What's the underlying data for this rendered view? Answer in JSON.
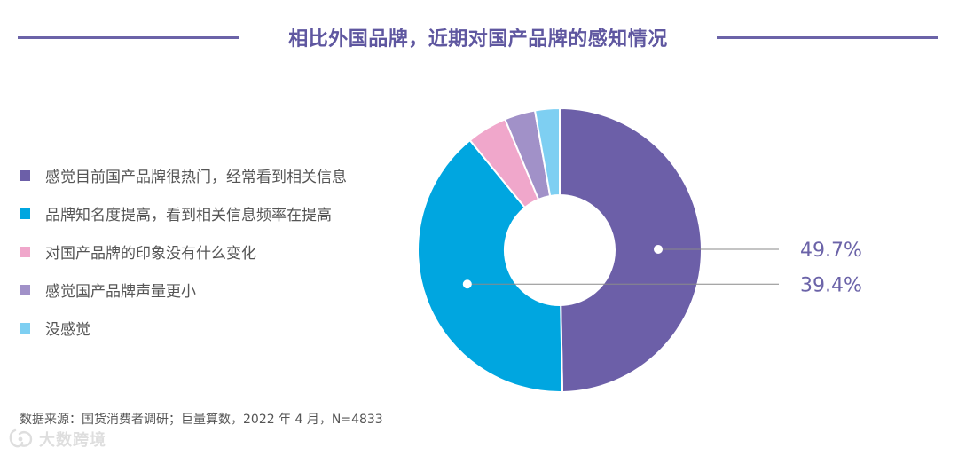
{
  "title": "相比外国品牌，近期对国产品牌的感知情况",
  "chart_data": {
    "type": "pie",
    "style": "donut",
    "series": [
      {
        "name": "感觉目前国产品牌很热门，经常看到相关信息",
        "value": 49.7,
        "color": "#6c5fa8"
      },
      {
        "name": "品牌知名度提高，看到相关信息频率在提高",
        "value": 39.4,
        "color": "#00a6e0"
      },
      {
        "name": "对国产品牌的印象没有什么变化",
        "value": 4.6,
        "color": "#f0a7cb"
      },
      {
        "name": "感觉国产品牌声量更小",
        "value": 3.5,
        "color": "#a191c8"
      },
      {
        "name": "没感觉",
        "value": 2.8,
        "color": "#7ecff2"
      }
    ],
    "data_labels": [
      "49.7%",
      "39.4%"
    ],
    "legend_position": "left"
  },
  "source": "数据来源：国货消费者调研；巨量算数，2022 年 4 月，N=4833",
  "watermark": {
    "text": "大数跨境",
    "icon": "brand-logo-icon"
  }
}
